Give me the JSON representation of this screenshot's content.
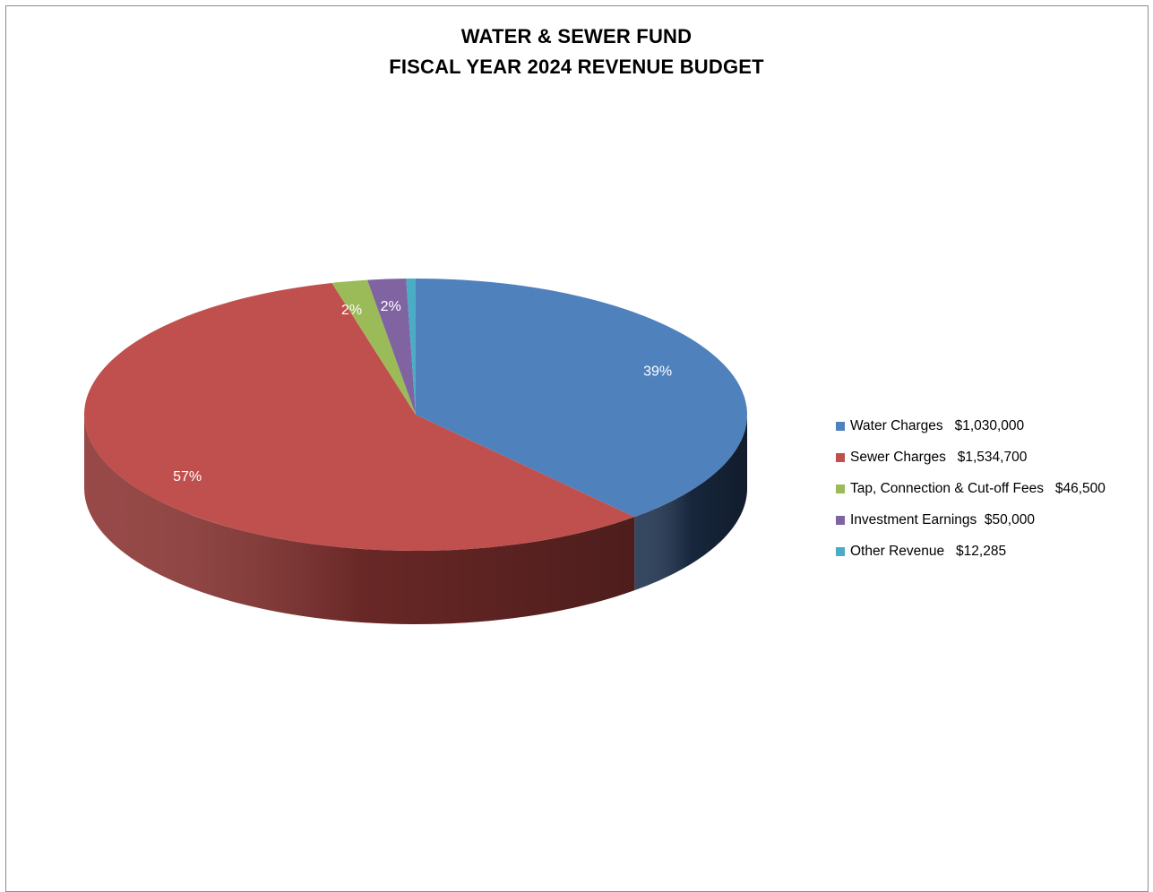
{
  "title": {
    "line1": "WATER & SEWER FUND",
    "line2": "FISCAL YEAR 2024 REVENUE BUDGET"
  },
  "chart_data": {
    "type": "pie",
    "title": "WATER & SEWER FUND FISCAL YEAR 2024 REVENUE BUDGET",
    "legend_position": "right",
    "style": "3d",
    "slices": [
      {
        "name": "Water Charges",
        "value_label": "$1,030,000",
        "value": 1030000,
        "percent_label": "39%",
        "color": "#4F81BD",
        "side_color": "#1F3350"
      },
      {
        "name": "Sewer Charges",
        "value_label": "$1,534,700",
        "value": 1534700,
        "percent_label": "57%",
        "color": "#C0504D",
        "side_color": "#8C3533"
      },
      {
        "name": "Tap, Connection & Cut-off Fees",
        "value_label": "$46,500",
        "value": 46500,
        "percent_label": "2%",
        "color": "#9BBB59",
        "side_color": "#5E7635"
      },
      {
        "name": "Investment Earnings",
        "value_label": "$50,000",
        "value": 50000,
        "percent_label": "2%",
        "color": "#8064A2",
        "side_color": "#4E3D63"
      },
      {
        "name": "Other Revenue",
        "value_label": "$12,285",
        "value": 12285,
        "percent_label": "",
        "color": "#4BACC6",
        "side_color": "#2C6878"
      }
    ]
  },
  "legend": {
    "items": [
      {
        "label": "Water Charges",
        "gap": "   ",
        "value": "$1,030,000",
        "color": "#4F81BD"
      },
      {
        "label": "Sewer Charges",
        "gap": "   ",
        "value": "$1,534,700",
        "color": "#C0504D"
      },
      {
        "label": "Tap, Connection & Cut-off Fees",
        "gap": "   ",
        "value": "$46,500",
        "color": "#9BBB59"
      },
      {
        "label": "Investment Earnings",
        "gap": "  ",
        "value": "$50,000",
        "color": "#8064A2"
      },
      {
        "label": "Other Revenue",
        "gap": "   ",
        "value": "$12,285",
        "color": "#4BACC6"
      }
    ]
  }
}
